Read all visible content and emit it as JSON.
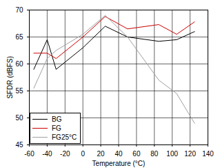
{
  "chart_data": {
    "type": "line",
    "x_label": "Temperature (°C)",
    "y_label": "SFDR (dBFS)",
    "x": [
      -55,
      -40,
      -30,
      0,
      25,
      50,
      85,
      105,
      125
    ],
    "series": [
      {
        "name": "BG",
        "color": "#000000",
        "values": [
          59,
          64.5,
          59,
          63,
          67,
          65,
          64.2,
          64.5,
          66
        ]
      },
      {
        "name": "FG",
        "color": "#cc0000",
        "values": [
          62,
          62,
          61,
          65,
          68.8,
          66.5,
          67.3,
          65.5,
          67.8
        ]
      },
      {
        "name": "FG25°C",
        "color": "#a0a0a0",
        "values": [
          55.5,
          61,
          62.5,
          65.5,
          69,
          65,
          57,
          54.5,
          49
        ]
      }
    ],
    "xlim": [
      -60,
      140
    ],
    "xticks": [
      -60,
      -40,
      -20,
      0,
      20,
      40,
      60,
      80,
      100,
      120,
      140
    ],
    "ylim": [
      45,
      70
    ],
    "yticks": [
      45,
      50,
      55,
      60,
      65,
      70
    ],
    "grid": true,
    "legend": "lower left"
  }
}
